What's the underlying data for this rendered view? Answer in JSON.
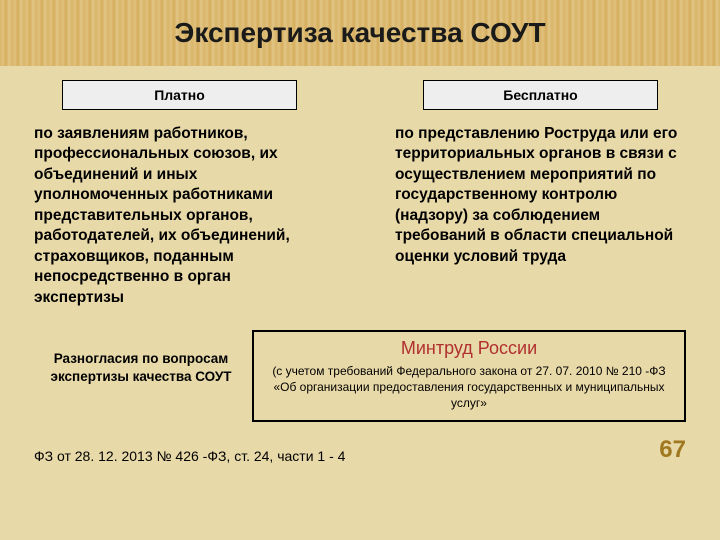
{
  "title": "Экспертиза качества СОУТ",
  "columns": {
    "left": {
      "header": "Платно",
      "body": "по заявлениям работников, профессиональных союзов, их объединений и иных уполномоченных работниками представительных органов, работодателей, их объединений, страховщиков, поданным непосредственно в орган экспертизы"
    },
    "right": {
      "header": "Бесплатно",
      "body": "по представлению Роструда или его территориальных органов в связи с осуществлением мероприятий по государственному контролю (надзору) за соблюдением требований в области специальной оценки условий труда"
    }
  },
  "disputes": "Разногласия по вопросам экспертизы качества СОУТ",
  "ministry": {
    "title": "Минтруд России",
    "note": "(с учетом требований Федерального закона от 27. 07. 2010 № 210 -ФЗ «Об организации предоставления государственных и муниципальных услуг»"
  },
  "footnote": "ФЗ от 28. 12. 2013 № 426 -ФЗ, ст. 24, части 1 - 4",
  "page": "67",
  "colors": {
    "background": "#e8d9a8",
    "band": "#d9b56a",
    "header_box": "#eeeeee",
    "ministry_title": "#b03030",
    "page_num": "#a07820"
  }
}
